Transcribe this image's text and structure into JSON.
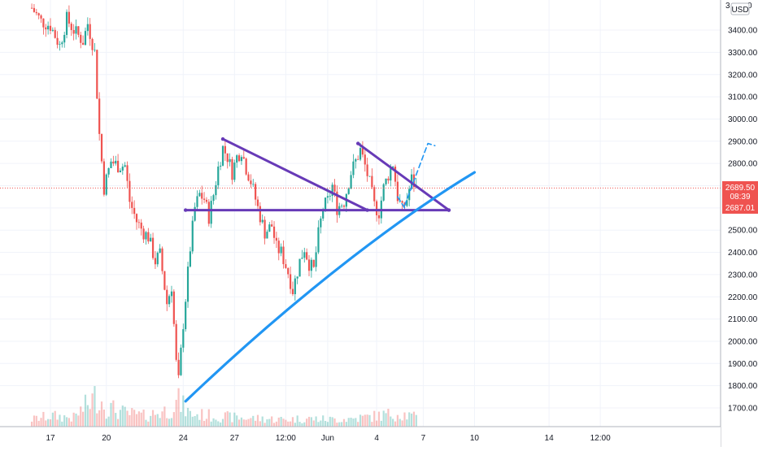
{
  "chart_data": {
    "type": "candlestick",
    "currency": "USD",
    "y_axis": {
      "ticks": [
        1700,
        1800,
        1900,
        2000,
        2100,
        2200,
        2300,
        2400,
        2500,
        2600,
        2700,
        2800,
        2900,
        3000,
        3100,
        3200,
        3300,
        3400
      ],
      "tick_labels": [
        "1700.00",
        "1800.00",
        "1900.00",
        "2000.00",
        "2100.00",
        "2200.00",
        "2300.00",
        "2400.00",
        "2500.00",
        "2600.00",
        "2700.00",
        "2800.00",
        "2900.00",
        "3000.00",
        "3100.00",
        "3200.00",
        "3300.00",
        "3400.00"
      ],
      "range": [
        1610,
        3510
      ],
      "top_partial_label": "3"
    },
    "x_axis": {
      "tick_labels": [
        "17",
        "20",
        "24",
        "27",
        "12:00",
        "Jun",
        "4",
        "7",
        "10",
        "14",
        "12:00"
      ],
      "tick_positions": [
        0.0,
        1.2,
        2.85,
        3.95,
        5.05,
        5.95,
        7.0,
        8.0,
        9.1,
        10.7,
        11.8
      ]
    },
    "price_labels": {
      "last": {
        "value": 2689.5,
        "text": "2689.50",
        "countdown": "08:39",
        "color": "#ef5350"
      },
      "level": {
        "value": 2687.01,
        "text": "2687.01",
        "color": "#ef5350"
      }
    },
    "last_price_line": 2689.5,
    "candles_path": [
      [
        -0.4,
        3500
      ],
      [
        -0.2,
        3440
      ],
      [
        0.0,
        3420
      ],
      [
        0.2,
        3330
      ],
      [
        0.35,
        3450
      ],
      [
        0.5,
        3400
      ],
      [
        0.7,
        3350
      ],
      [
        0.8,
        3430
      ],
      [
        0.95,
        3300
      ],
      [
        1.05,
        2930
      ],
      [
        1.15,
        2690
      ],
      [
        1.3,
        2810
      ],
      [
        1.45,
        2790
      ],
      [
        1.6,
        2790
      ],
      [
        1.7,
        2630
      ],
      [
        1.85,
        2540
      ],
      [
        2.0,
        2490
      ],
      [
        2.1,
        2470
      ],
      [
        2.25,
        2360
      ],
      [
        2.35,
        2390
      ],
      [
        2.5,
        2170
      ],
      [
        2.6,
        2250
      ],
      [
        2.7,
        1900
      ],
      [
        2.75,
        1820
      ],
      [
        2.85,
        2080
      ],
      [
        3.0,
        2420
      ],
      [
        3.1,
        2600
      ],
      [
        3.2,
        2660
      ],
      [
        3.3,
        2640
      ],
      [
        3.4,
        2560
      ],
      [
        3.5,
        2660
      ],
      [
        3.6,
        2780
      ],
      [
        3.7,
        2870
      ],
      [
        3.8,
        2830
      ],
      [
        3.9,
        2760
      ],
      [
        4.0,
        2830
      ],
      [
        4.1,
        2860
      ],
      [
        4.2,
        2780
      ],
      [
        4.3,
        2720
      ],
      [
        4.45,
        2600
      ],
      [
        4.6,
        2490
      ],
      [
        4.75,
        2520
      ],
      [
        4.85,
        2420
      ],
      [
        4.95,
        2400
      ],
      [
        5.1,
        2310
      ],
      [
        5.2,
        2230
      ],
      [
        5.35,
        2360
      ],
      [
        5.45,
        2420
      ],
      [
        5.55,
        2350
      ],
      [
        5.65,
        2320
      ],
      [
        5.75,
        2480
      ],
      [
        5.85,
        2600
      ],
      [
        5.95,
        2630
      ],
      [
        6.05,
        2700
      ],
      [
        6.15,
        2600
      ],
      [
        6.3,
        2630
      ],
      [
        6.45,
        2760
      ],
      [
        6.55,
        2810
      ],
      [
        6.65,
        2860
      ],
      [
        6.75,
        2790
      ],
      [
        6.85,
        2710
      ],
      [
        6.95,
        2610
      ],
      [
        7.05,
        2580
      ],
      [
        7.15,
        2690
      ],
      [
        7.25,
        2750
      ],
      [
        7.35,
        2800
      ],
      [
        7.45,
        2650
      ],
      [
        7.55,
        2590
      ],
      [
        7.65,
        2640
      ],
      [
        7.75,
        2730
      ],
      [
        7.85,
        2690
      ]
    ],
    "volume_path": [
      [
        -0.4,
        0.08
      ],
      [
        0.0,
        0.12
      ],
      [
        0.5,
        0.1
      ],
      [
        1.0,
        0.35
      ],
      [
        1.2,
        0.22
      ],
      [
        1.6,
        0.15
      ],
      [
        2.0,
        0.12
      ],
      [
        2.5,
        0.18
      ],
      [
        2.75,
        0.28
      ],
      [
        3.0,
        0.14
      ],
      [
        3.5,
        0.12
      ],
      [
        4.0,
        0.1
      ],
      [
        4.5,
        0.09
      ],
      [
        5.0,
        0.08
      ],
      [
        5.5,
        0.09
      ],
      [
        6.0,
        0.08
      ],
      [
        6.5,
        0.09
      ],
      [
        7.0,
        0.12
      ],
      [
        7.5,
        0.15
      ],
      [
        7.85,
        0.1
      ]
    ],
    "drawings": [
      {
        "name": "descending-trendline-1",
        "color": "#673ab7",
        "points": [
          [
            3.7,
            2910
          ],
          [
            6.8,
            2590
          ]
        ]
      },
      {
        "name": "descending-trendline-2",
        "color": "#673ab7",
        "points": [
          [
            6.6,
            2890
          ],
          [
            8.55,
            2590
          ]
        ]
      },
      {
        "name": "support-line",
        "color": "#673ab7",
        "points": [
          [
            2.9,
            2590
          ],
          [
            8.55,
            2590
          ]
        ]
      },
      {
        "name": "ascending-support-curve",
        "color": "#2196f3",
        "curve": [
          [
            2.9,
            1730
          ],
          [
            5.5,
            2250
          ],
          [
            7.75,
            2590
          ],
          [
            9.1,
            2760
          ]
        ]
      },
      {
        "name": "projection-dashed",
        "color": "#2196f3",
        "dashed": true,
        "points": [
          [
            7.6,
            2610
          ],
          [
            8.1,
            2890
          ],
          [
            8.25,
            2880
          ]
        ]
      },
      {
        "name": "projection-dashed-return",
        "color": "#2196f3",
        "dashed": true,
        "points": [
          [
            7.45,
            2650
          ],
          [
            7.6,
            2600
          ]
        ]
      }
    ]
  },
  "header": {
    "currency_badge": "USD",
    "top_label_right": "0"
  }
}
